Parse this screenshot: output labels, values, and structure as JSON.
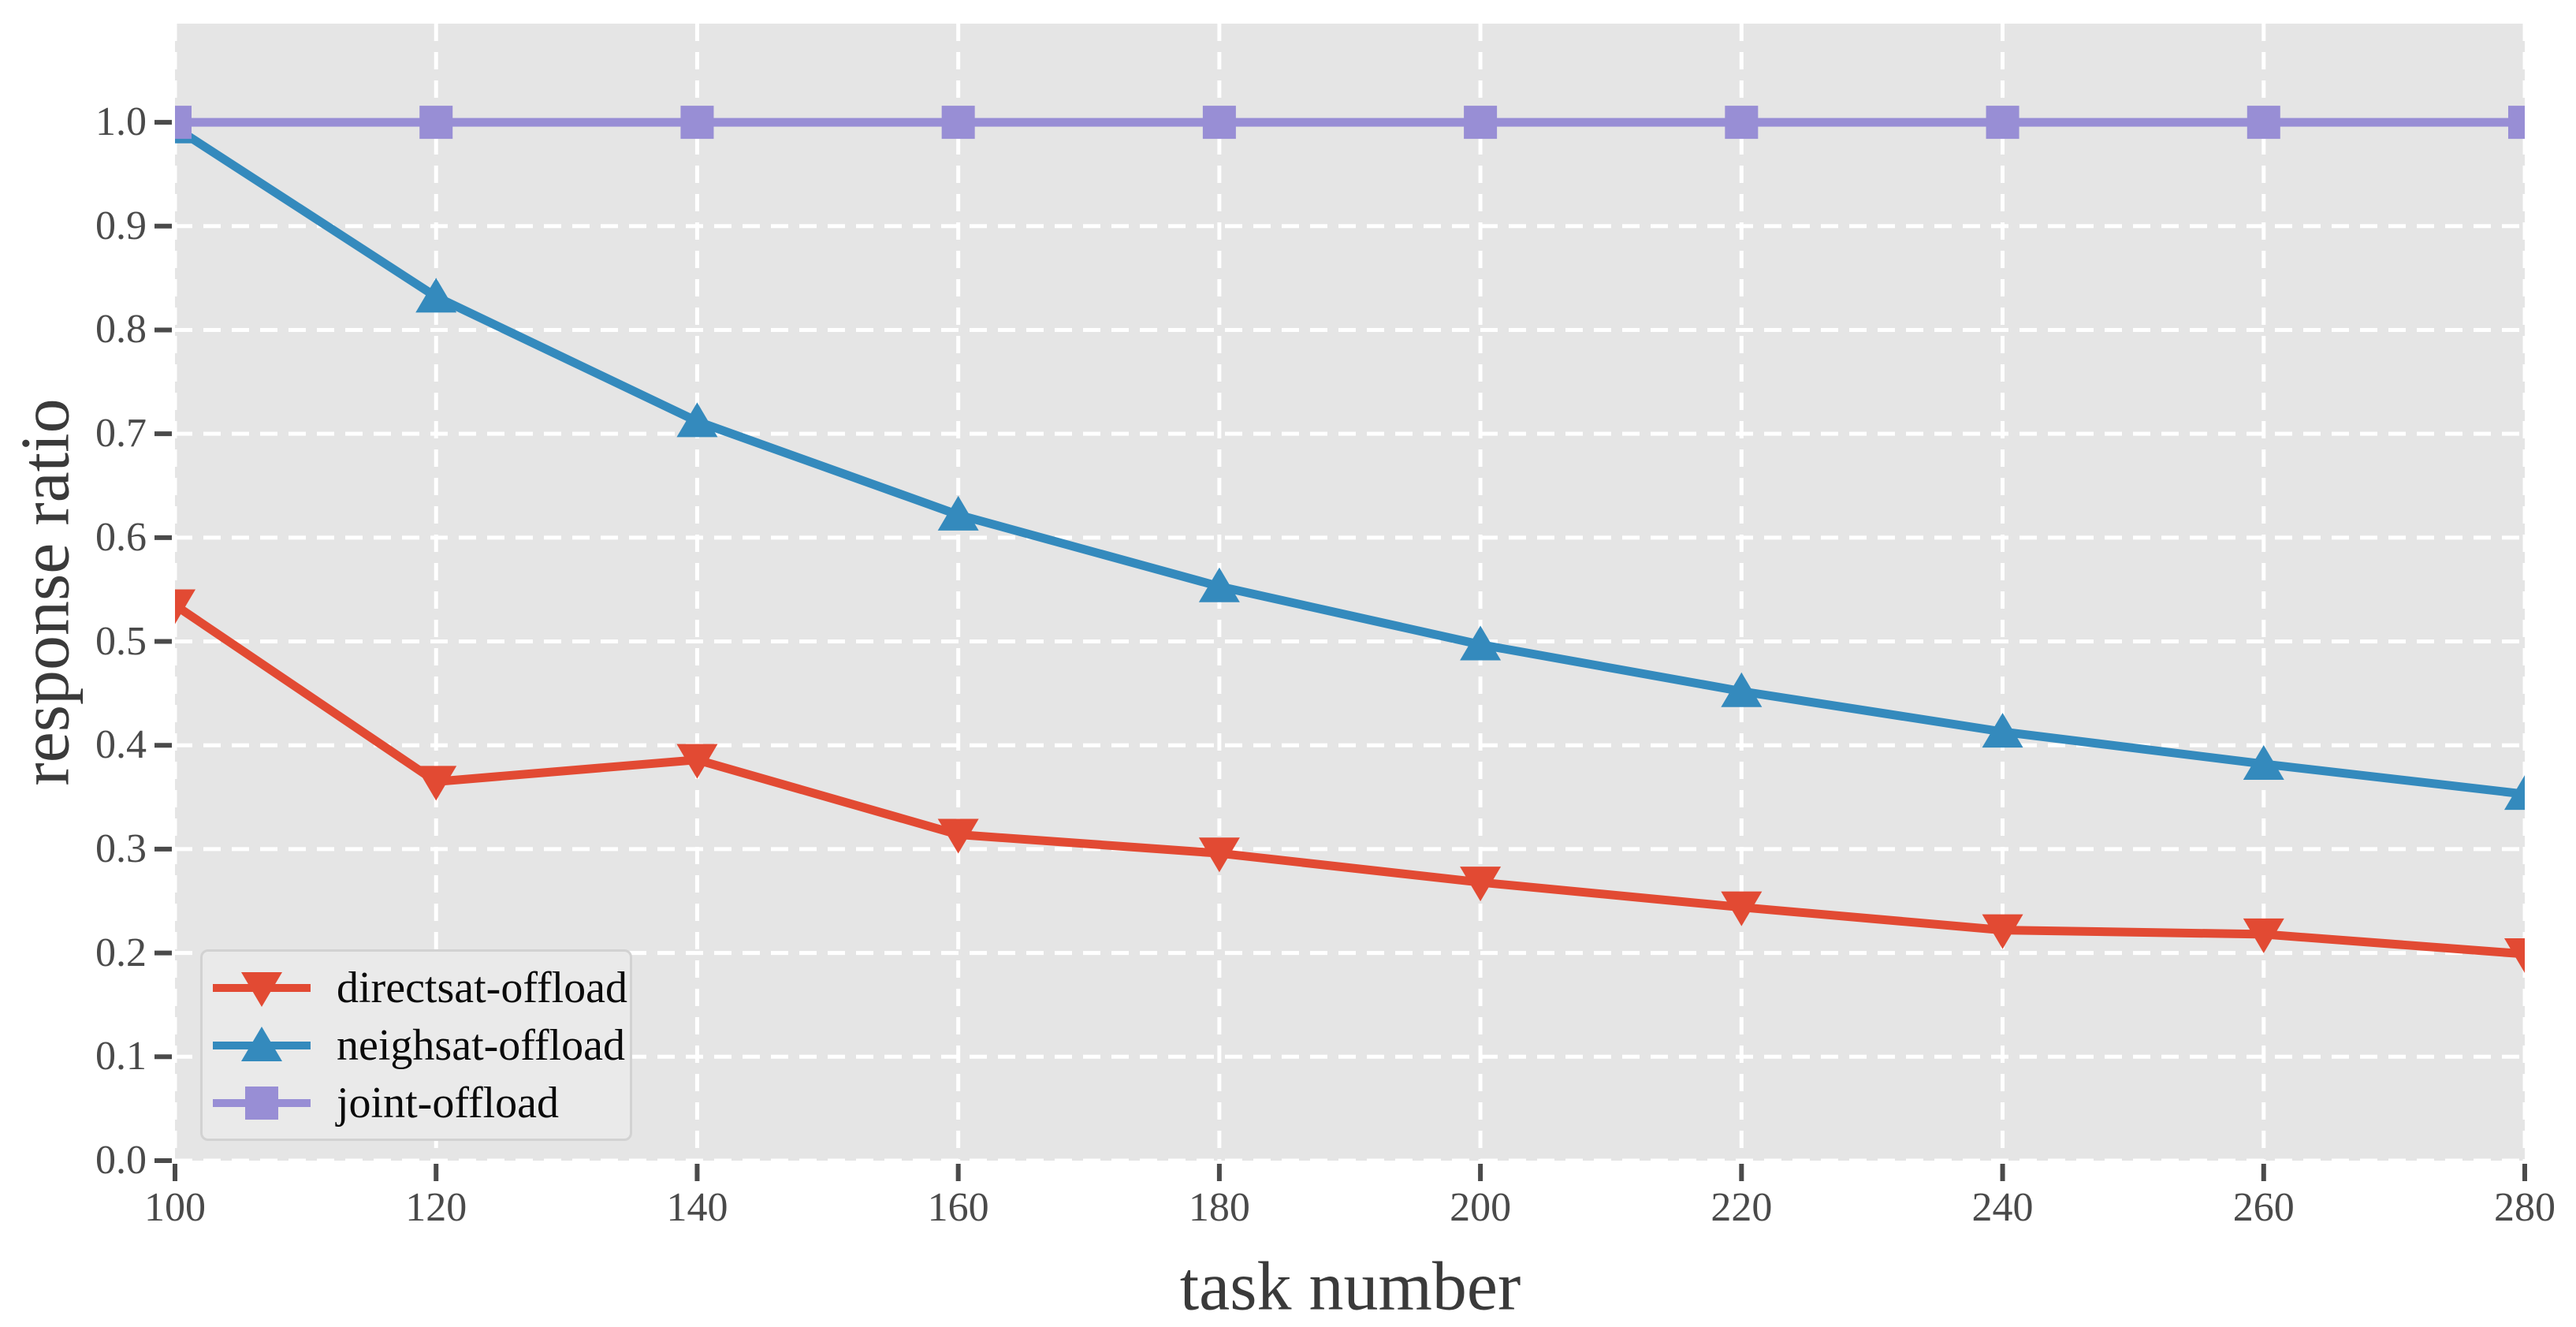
{
  "figure": {
    "background": "#ffffff",
    "plot_background": "#E5E5E5",
    "grid_color": "#ffffff",
    "tick_mark_color": "#4a4a4a",
    "tick_label_color": "#4a4a4a",
    "axis_title_color": "#3a3a3a",
    "legend": {
      "background": "#eaeaea",
      "border_color": "#d2d2d2",
      "text_color": "#0a0a0a"
    }
  },
  "chart_data": {
    "type": "line",
    "title": "",
    "xlabel": "task number",
    "ylabel": "response ratio",
    "x": [
      100,
      120,
      140,
      160,
      180,
      200,
      220,
      240,
      260,
      280
    ],
    "x_tick_labels": [
      "100",
      "120",
      "140",
      "160",
      "180",
      "200",
      "220",
      "240",
      "260",
      "280"
    ],
    "y_ticks": [
      0.0,
      0.1,
      0.2,
      0.3,
      0.4,
      0.5,
      0.6,
      0.7,
      0.8,
      0.9,
      1.0
    ],
    "y_tick_labels": [
      "0.0",
      "0.1",
      "0.2",
      "0.3",
      "0.4",
      "0.5",
      "0.6",
      "0.7",
      "0.8",
      "0.9",
      "1.0"
    ],
    "xlim": [
      100,
      280
    ],
    "ylim": [
      0,
      1.095
    ],
    "grid": true,
    "grid_style": "dashed",
    "legend_position": "lower-left",
    "series": [
      {
        "name": "directsat-offload",
        "color": "#E24A33",
        "marker": "triangle-down",
        "values": [
          0.535,
          0.365,
          0.386,
          0.314,
          0.296,
          0.268,
          0.244,
          0.222,
          0.218,
          0.199
        ]
      },
      {
        "name": "neighsat-offload",
        "color": "#348ABD",
        "marker": "triangle-up",
        "values": [
          0.995,
          0.832,
          0.712,
          0.622,
          0.553,
          0.497,
          0.452,
          0.413,
          0.382,
          0.353
        ]
      },
      {
        "name": "joint-offload",
        "color": "#988ED5",
        "marker": "square",
        "values": [
          1.0,
          1.0,
          1.0,
          1.0,
          1.0,
          1.0,
          1.0,
          1.0,
          1.0,
          1.0
        ]
      }
    ]
  }
}
